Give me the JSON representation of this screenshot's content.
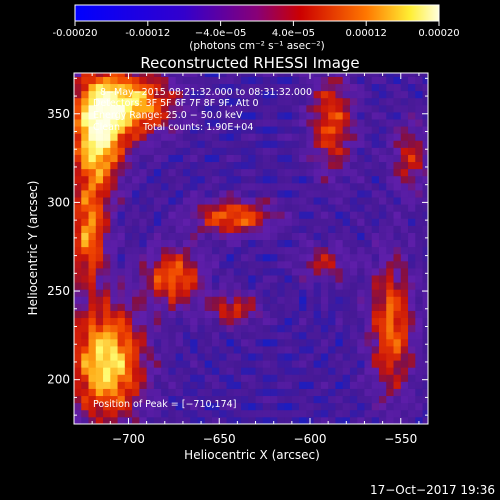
{
  "chart_data": {
    "type": "heatmap",
    "title": "Reconstructed RHESSI Image",
    "xlabel": "Heliocentric X (arcsec)",
    "ylabel": "Heliocentric Y (arcsec)",
    "xlim": [
      -730,
      -535
    ],
    "ylim": [
      175,
      373
    ],
    "xticks": [
      -700,
      -650,
      -600,
      -550
    ],
    "yticks": [
      200,
      250,
      300,
      350
    ],
    "colorbar": {
      "range": [
        -0.0002,
        0.0002
      ],
      "ticks": [
        -0.0002,
        -0.00012,
        -4e-05,
        4e-05,
        0.00012,
        0.0002
      ],
      "tick_labels": [
        "-0.00020",
        "-0.00012",
        "−4.0e−05",
        "4.0e−05",
        "0.00012",
        "0.00020"
      ],
      "unit_text": "(photons cm⁻² s⁻¹ asec⁻²)"
    },
    "annotations": {
      "time_range": "8−May−2015 08:21:32.000 to 08:31:32.000",
      "detectors": "Detectors: 3F 5F 6F 7F 8F 9F, Att 0",
      "energy_range": "Energy Range: 25.0 − 50.0 keV",
      "method": "Clean",
      "total_counts": "Total counts: 1.90E+04",
      "peak_position": "Position of Peak = [−710,174]"
    },
    "colors": {
      "low": "#3a0a78",
      "mid": "#cc1010",
      "high": "#ffff90"
    }
  },
  "footer_timestamp": "17−Oct−2017 19:36"
}
